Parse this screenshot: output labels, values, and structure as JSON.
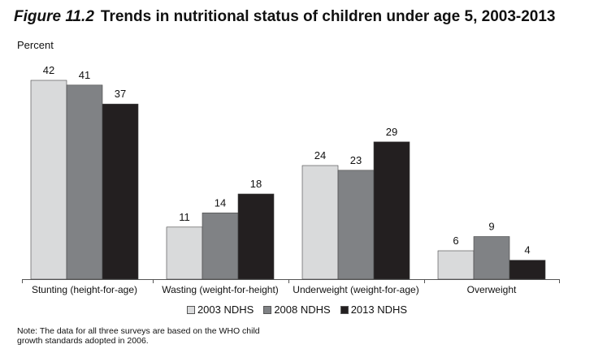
{
  "header": {
    "figure_label": "Figure 11.2",
    "title": "Trends in nutritional status of children under age 5, 2003-2013"
  },
  "note": "Note: The data for all three surveys are based on the WHO child growth standards adopted in 2006.",
  "chart_data": {
    "type": "bar",
    "ylabel": "Percent",
    "ylim": [
      0,
      42
    ],
    "grid": false,
    "legend_position": "bottom",
    "categories": [
      "Stunting (height-for-age)",
      "Wasting (weight-for-height)",
      "Underweight (weight-for-age)",
      "Overweight"
    ],
    "series": [
      {
        "name": "2003 NDHS",
        "values": [
          42,
          11,
          24,
          6
        ],
        "color": "#d9dadb"
      },
      {
        "name": "2008 NDHS",
        "values": [
          41,
          14,
          23,
          9
        ],
        "color": "#808285"
      },
      {
        "name": "2013 NDHS",
        "values": [
          37,
          18,
          29,
          4
        ],
        "color": "#231f20"
      }
    ]
  }
}
